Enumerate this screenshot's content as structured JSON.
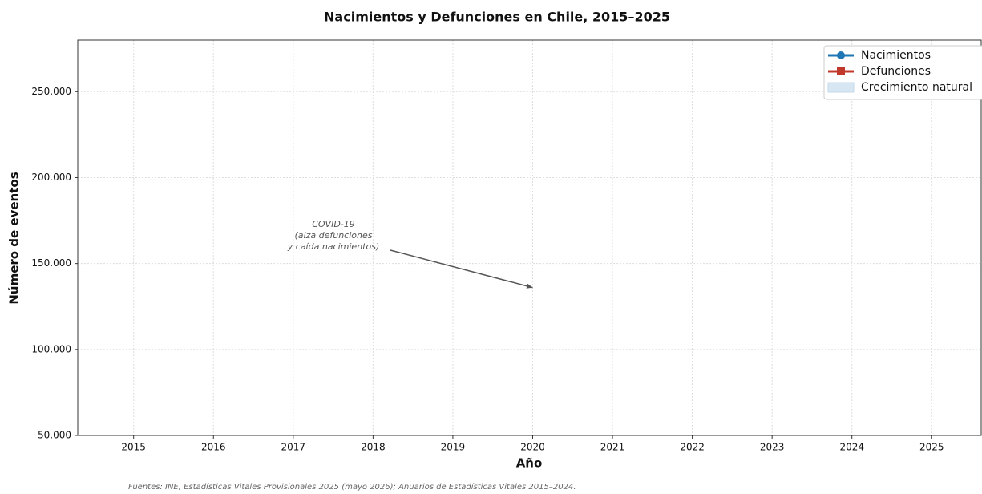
{
  "chart_data": {
    "type": "line",
    "title": "Nacimientos y Defunciones en Chile, 2015–2025",
    "x_label": "Año",
    "y_label": "Número de eventos",
    "x": [
      2015,
      2016,
      2017,
      2018,
      2019,
      2020,
      2021,
      2022,
      2023,
      2024,
      2025
    ],
    "series": [
      {
        "name": "Nacimientos",
        "color": "#1f77b4",
        "marker": "circle",
        "values": [
          null,
          null,
          null,
          null,
          null,
          null,
          null,
          null,
          null,
          null,
          null
        ]
      },
      {
        "name": "Defunciones",
        "color": "#c0392b",
        "marker": "square",
        "values": [
          null,
          null,
          null,
          null,
          null,
          null,
          null,
          null,
          null,
          null,
          null
        ]
      }
    ],
    "fill": {
      "name": "Crecimiento natural",
      "color": "#d6e6f3"
    },
    "xlim": [
      2014.3,
      2025.62
    ],
    "xticks": [
      2015,
      2016,
      2017,
      2018,
      2019,
      2020,
      2021,
      2022,
      2023,
      2024,
      2025
    ],
    "ylim": [
      50000,
      280000
    ],
    "yticks": [
      {
        "value": 50000,
        "label": "50.000"
      },
      {
        "value": 100000,
        "label": "100.000"
      },
      {
        "value": 150000,
        "label": "150.000"
      },
      {
        "value": 200000,
        "label": "200.000"
      },
      {
        "value": 250000,
        "label": "250.000"
      }
    ],
    "grid": true,
    "legend": "upper right",
    "annotations": [
      {
        "text": [
          "COVID-19",
          "(alza defunciones",
          "y caída nacimientos)"
        ],
        "x": 2020,
        "y": 136000
      }
    ],
    "source": "Fuentes: INE, Estadísticas Vitales Provisionales 2025 (mayo 2026); Anuarios de Estadísticas Vitales 2015–2024."
  }
}
